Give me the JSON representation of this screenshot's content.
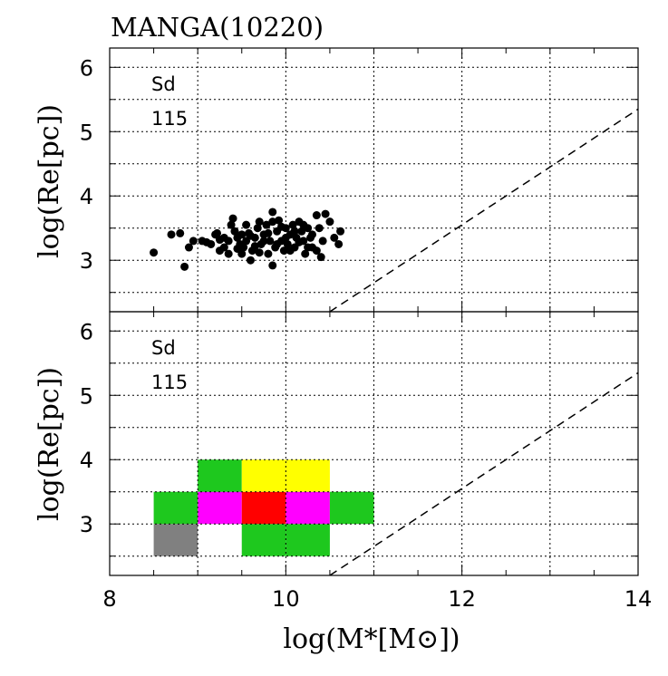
{
  "chart_data": {
    "type": "scatter+heatmap",
    "title": "MANGA(10220)",
    "xlabel": "log(M*[M⊙])",
    "ylabel": "log(Re[pc])",
    "xlim": [
      8,
      14
    ],
    "ylim": [
      2.2,
      6.3
    ],
    "xticks": [
      8,
      10,
      12,
      14
    ],
    "yticks": [
      3,
      4,
      5,
      6
    ],
    "grid": true,
    "colors": {
      "point": "#000000",
      "gray": "#808080",
      "green": "#1ec81e",
      "magenta": "#ff00ff",
      "red": "#ff0000",
      "yellow": "#ffff00",
      "line": "#000000"
    },
    "reference_line": {
      "style": "dashed",
      "points": [
        [
          10.5,
          2.2
        ],
        [
          14,
          5.35
        ]
      ]
    },
    "panels": [
      {
        "kind": "scatter",
        "morph_type": "Sd",
        "count": "115",
        "points": [
          [
            8.5,
            3.12
          ],
          [
            8.7,
            3.4
          ],
          [
            8.8,
            3.42
          ],
          [
            8.85,
            2.9
          ],
          [
            8.9,
            3.2
          ],
          [
            8.95,
            3.3
          ],
          [
            9.05,
            3.3
          ],
          [
            9.15,
            3.25
          ],
          [
            9.2,
            3.4
          ],
          [
            9.22,
            3.42
          ],
          [
            9.25,
            3.15
          ],
          [
            9.3,
            3.2
          ],
          [
            9.35,
            3.3
          ],
          [
            9.38,
            3.55
          ],
          [
            9.4,
            3.65
          ],
          [
            9.42,
            3.45
          ],
          [
            9.45,
            3.35
          ],
          [
            9.48,
            3.25
          ],
          [
            9.5,
            3.1
          ],
          [
            9.52,
            3.2
          ],
          [
            9.55,
            3.3
          ],
          [
            9.58,
            3.42
          ],
          [
            9.6,
            3.0
          ],
          [
            9.62,
            3.15
          ],
          [
            9.65,
            3.35
          ],
          [
            9.68,
            3.5
          ],
          [
            9.7,
            3.6
          ],
          [
            9.72,
            3.25
          ],
          [
            9.75,
            3.4
          ],
          [
            9.78,
            3.55
          ],
          [
            9.8,
            3.1
          ],
          [
            9.82,
            3.3
          ],
          [
            9.85,
            3.75
          ],
          [
            9.85,
            2.92
          ],
          [
            9.88,
            3.2
          ],
          [
            9.9,
            3.45
          ],
          [
            9.92,
            3.62
          ],
          [
            9.95,
            3.3
          ],
          [
            9.98,
            3.15
          ],
          [
            10.0,
            3.5
          ],
          [
            10.02,
            3.25
          ],
          [
            10.05,
            3.4
          ],
          [
            10.08,
            3.55
          ],
          [
            10.1,
            3.2
          ],
          [
            10.12,
            3.35
          ],
          [
            10.15,
            3.6
          ],
          [
            10.18,
            3.45
          ],
          [
            10.2,
            3.3
          ],
          [
            10.22,
            3.1
          ],
          [
            10.25,
            3.5
          ],
          [
            10.28,
            3.35
          ],
          [
            10.3,
            3.2
          ],
          [
            10.35,
            3.7
          ],
          [
            10.38,
            3.5
          ],
          [
            10.4,
            3.05
          ],
          [
            10.42,
            3.3
          ],
          [
            10.45,
            3.72
          ],
          [
            10.5,
            3.6
          ],
          [
            10.55,
            3.35
          ],
          [
            10.6,
            3.25
          ],
          [
            10.62,
            3.45
          ],
          [
            9.1,
            3.28
          ],
          [
            9.3,
            3.35
          ],
          [
            9.55,
            3.55
          ],
          [
            9.6,
            3.38
          ],
          [
            9.75,
            3.3
          ],
          [
            9.9,
            3.25
          ],
          [
            10.0,
            3.35
          ],
          [
            10.1,
            3.45
          ],
          [
            10.25,
            3.2
          ],
          [
            9.45,
            3.18
          ],
          [
            9.65,
            3.22
          ],
          [
            9.8,
            3.42
          ],
          [
            10.05,
            3.15
          ],
          [
            10.3,
            3.4
          ],
          [
            9.35,
            3.1
          ],
          [
            9.7,
            3.12
          ],
          [
            10.15,
            3.28
          ],
          [
            9.25,
            3.32
          ],
          [
            9.95,
            3.52
          ],
          [
            10.35,
            3.15
          ],
          [
            9.5,
            3.4
          ],
          [
            9.85,
            3.6
          ],
          [
            10.2,
            3.55
          ]
        ]
      },
      {
        "kind": "heatmap",
        "morph_type": "Sd",
        "count": "115",
        "bin_width_x": 0.5,
        "bin_height_y": 0.5,
        "cells": [
          {
            "x": 8.5,
            "y": 2.5,
            "color": "gray"
          },
          {
            "x": 9.5,
            "y": 2.5,
            "color": "green"
          },
          {
            "x": 10.0,
            "y": 2.5,
            "color": "green"
          },
          {
            "x": 8.5,
            "y": 3.0,
            "color": "green"
          },
          {
            "x": 9.0,
            "y": 3.0,
            "color": "magenta"
          },
          {
            "x": 9.5,
            "y": 3.0,
            "color": "red"
          },
          {
            "x": 10.0,
            "y": 3.0,
            "color": "magenta"
          },
          {
            "x": 10.5,
            "y": 3.0,
            "color": "green"
          },
          {
            "x": 9.0,
            "y": 3.5,
            "color": "green"
          },
          {
            "x": 9.5,
            "y": 3.5,
            "color": "yellow"
          },
          {
            "x": 10.0,
            "y": 3.5,
            "color": "yellow"
          }
        ]
      }
    ]
  }
}
